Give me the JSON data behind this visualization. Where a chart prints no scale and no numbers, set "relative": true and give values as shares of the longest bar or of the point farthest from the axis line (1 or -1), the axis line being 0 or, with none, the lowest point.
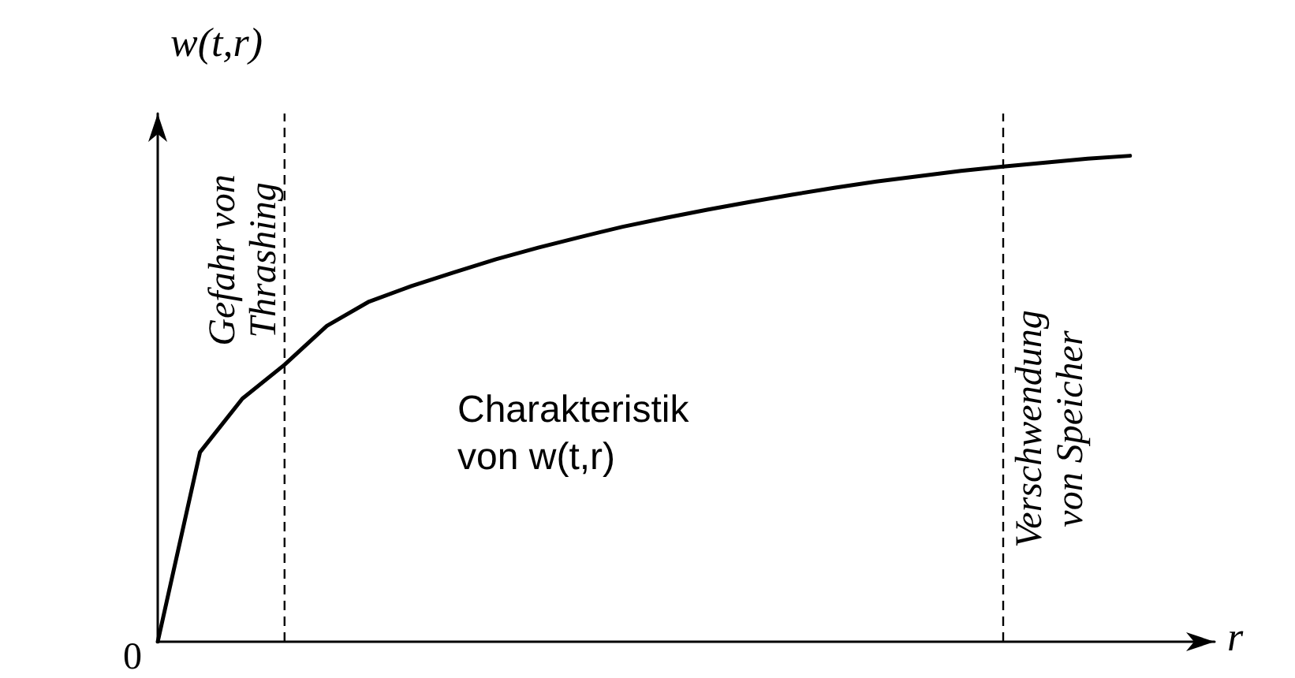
{
  "chart_data": {
    "type": "line",
    "relative": true,
    "xlabel": "r",
    "ylabel": "w(t,r)",
    "categories": [
      null,
      null,
      null,
      null,
      null,
      null,
      null,
      null,
      null,
      null,
      null,
      null,
      null,
      null,
      null,
      null,
      null,
      null,
      null,
      null,
      null,
      null,
      null,
      null,
      null,
      null
    ],
    "series": [
      {
        "color": "#000000",
        "values": [
          0,
          0.39,
          0.5,
          0.57,
          0.65,
          0.7,
          0.732,
          0.76,
          0.787,
          0.811,
          0.833,
          0.854,
          0.872,
          0.889,
          0.905,
          0.92,
          0.934,
          0.947,
          0.958,
          0.969,
          0.978,
          0.986,
          0.994,
          1,
          null,
          null
        ]
      }
    ],
    "annotations": [
      "0",
      "Gefahr von\nThrashing",
      "Verschwendung\nvon Speicher",
      "Charakteristik\nvon w(t,r)"
    ],
    "marker": "none",
    "line_style": "solid"
  }
}
